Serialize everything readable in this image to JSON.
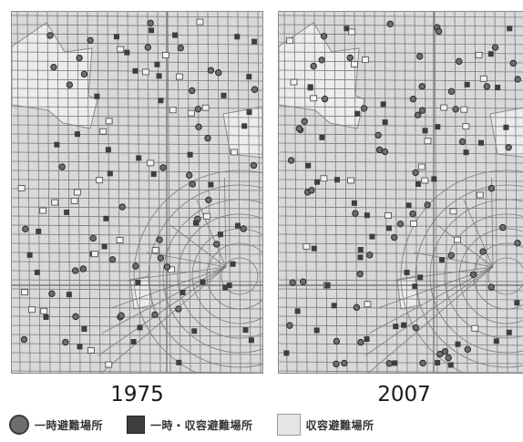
{
  "maps": [
    {
      "id": "map-1975",
      "year": "1975"
    },
    {
      "id": "map-2007",
      "year": "2007"
    }
  ],
  "legend": {
    "temporary_label": "一時避難場所",
    "temp_and_shelter_label": "一時・収容避難場所",
    "shelter_label": "収容避難場所"
  },
  "colors": {
    "map_background": "#d9d9d9",
    "street_lines": "#7a7a7a",
    "park_area": "#ececec",
    "marker_dark": "#3e3e3e",
    "marker_circle": "#6e6e6e",
    "marker_open": "#f2f2f2"
  },
  "symbols": {
    "temporary": "filled-circle",
    "temp_and_shelter": "filled-square",
    "shelter": "open-square"
  }
}
